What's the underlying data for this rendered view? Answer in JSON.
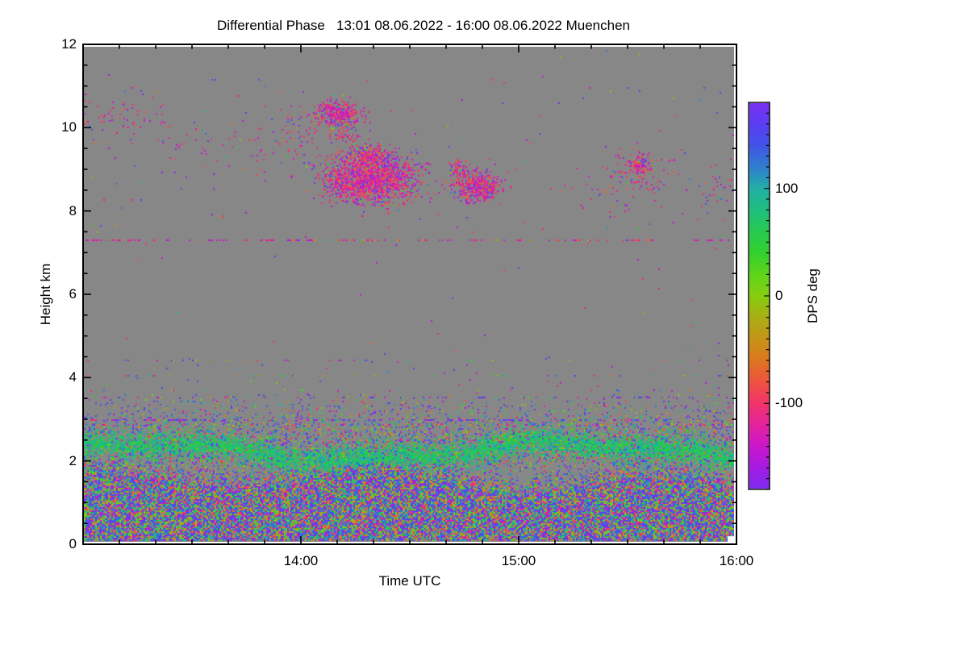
{
  "title": "Differential Phase   13:01 08.06.2022 - 16:00 08.06.2022 Muenchen",
  "figure": {
    "background": "#ffffff",
    "plot_background_nodata": "#878787",
    "axis_color": "#000000"
  },
  "axes": {
    "x": {
      "label": "Time UTC",
      "ticks": [
        "14:00",
        "15:00",
        "16:00"
      ],
      "tick_hours": [
        14,
        15,
        16
      ],
      "range_hours": [
        13,
        16
      ],
      "minor_step_minutes": 10
    },
    "y": {
      "label": "Height km",
      "ticks": [
        "0",
        "2",
        "4",
        "6",
        "8",
        "10",
        "12"
      ],
      "tick_values": [
        0,
        2,
        4,
        6,
        8,
        10,
        12
      ],
      "range_km": [
        0,
        12
      ],
      "minor_step_km": 0.5
    }
  },
  "colorbar": {
    "label": "DPS deg",
    "ticks": [
      "100",
      "0",
      "-100"
    ],
    "tick_values": [
      100,
      0,
      -100
    ],
    "range": [
      -180,
      180
    ],
    "minor_step": 10
  },
  "chart_data": {
    "type": "heatmap",
    "title": "Differential Phase   13:01 08.06.2022 - 16:00 08.06.2022 Muenchen",
    "xlabel": "Time UTC",
    "ylabel": "Height km",
    "value_label": "DPS deg",
    "x_range_hours": [
      13,
      16
    ],
    "y_range_km": [
      0,
      12
    ],
    "value_range_deg": [
      -180,
      180
    ],
    "seed": 77,
    "colormap": [
      [
        180,
        "#7A30F0"
      ],
      [
        160,
        "#5A3DF2"
      ],
      [
        140,
        "#3F55E6"
      ],
      [
        120,
        "#2F7FCE"
      ],
      [
        100,
        "#22AFA6"
      ],
      [
        80,
        "#1FBE7E"
      ],
      [
        60,
        "#27C94F"
      ],
      [
        40,
        "#33D02E"
      ],
      [
        20,
        "#5FD51A"
      ],
      [
        0,
        "#86CE10"
      ],
      [
        -20,
        "#A9AE14"
      ],
      [
        -40,
        "#C59517"
      ],
      [
        -60,
        "#DD761F"
      ],
      [
        -80,
        "#EE5340"
      ],
      [
        -100,
        "#F23469"
      ],
      [
        -120,
        "#E4239C"
      ],
      [
        -140,
        "#CB17CB"
      ],
      [
        -160,
        "#A51BE2"
      ],
      [
        -180,
        "#7F2BEE"
      ]
    ],
    "features": {
      "ground_noise": {
        "dense_top_km": 1.45,
        "wave_amp_km": 0.25,
        "density": 0.93,
        "falloff_sigma": 0.12,
        "blue_bias": 0.22
      },
      "green_aerosol_band": {
        "center_km": 2.2,
        "wave_amp_km": 0.2,
        "sigma_km": 0.19,
        "density": 0.9,
        "value_range_deg": [
          40,
          120
        ]
      },
      "mixed_speckle": {
        "center_km": 2.35,
        "sigma_km": 0.55,
        "density": 0.32
      },
      "dash_lines": [
        {
          "h_km": 7.33,
          "density": 0.3,
          "palette": "pink-magenta"
        },
        {
          "h_km": 4.42,
          "density": 0.08,
          "palette": "mixed"
        },
        {
          "h_km": 4.05,
          "density": 0.1,
          "palette": "mixed"
        },
        {
          "h_km": 3.7,
          "density": 0.05,
          "palette": "mixed"
        },
        {
          "h_km": 3.52,
          "density": 0.18,
          "palette": "cool"
        },
        {
          "h_km": 3.3,
          "density": 0.06,
          "palette": "mixed"
        },
        {
          "h_km": 2.98,
          "density": 0.3,
          "palette": "cool"
        },
        {
          "h_km": 2.86,
          "density": 0.25,
          "palette": "mixed"
        }
      ],
      "sparse_bands": [
        {
          "h0_km": 3.2,
          "h1_km": 4.6,
          "density": 0.006
        },
        {
          "h0_km": 4.6,
          "h1_km": 7.1,
          "density": 0.0007
        },
        {
          "h0_km": 7.1,
          "h1_km": 7.6,
          "density": 0.0015
        },
        {
          "h0_km": 7.6,
          "h1_km": 11.3,
          "density": 0.004
        },
        {
          "h0_km": 11.3,
          "h1_km": 12.0,
          "density": 0.0009
        }
      ],
      "cloud_clusters": [
        {
          "t_h": 14.17,
          "h_km": 10.38,
          "sig_t": 0.05,
          "sig_h": 0.17,
          "n": 380
        },
        {
          "t_h": 14.2,
          "h_km": 9.85,
          "sig_t": 0.03,
          "sig_h": 0.12,
          "n": 50
        },
        {
          "t_h": 14.3,
          "h_km": 9.35,
          "sig_t": 0.06,
          "sig_h": 0.15,
          "n": 250
        },
        {
          "t_h": 14.34,
          "h_km": 8.8,
          "sig_t": 0.095,
          "sig_h": 0.3,
          "n": 1500
        },
        {
          "t_h": 14.19,
          "h_km": 8.75,
          "sig_t": 0.05,
          "sig_h": 0.22,
          "n": 250
        },
        {
          "t_h": 14.81,
          "h_km": 8.62,
          "sig_t": 0.055,
          "sig_h": 0.18,
          "n": 500
        },
        {
          "t_h": 14.73,
          "h_km": 9.05,
          "sig_t": 0.025,
          "sig_h": 0.12,
          "n": 70
        },
        {
          "t_h": 15.56,
          "h_km": 9.15,
          "sig_t": 0.02,
          "sig_h": 0.13,
          "n": 90
        },
        {
          "t_h": 15.55,
          "h_km": 9.0,
          "sig_t": 0.07,
          "sig_h": 0.3,
          "n": 90
        },
        {
          "t_h": 13.15,
          "h_km": 10.25,
          "sig_t": 0.12,
          "sig_h": 0.25,
          "n": 60
        },
        {
          "t_h": 13.45,
          "h_km": 9.85,
          "sig_t": 0.12,
          "sig_h": 0.3,
          "n": 35
        },
        {
          "t_h": 13.75,
          "h_km": 9.45,
          "sig_t": 0.1,
          "sig_h": 0.3,
          "n": 30
        },
        {
          "t_h": 14.0,
          "h_km": 9.9,
          "sig_t": 0.07,
          "sig_h": 0.45,
          "n": 70
        },
        {
          "t_h": 15.45,
          "h_km": 8.55,
          "sig_t": 0.12,
          "sig_h": 0.35,
          "n": 45
        },
        {
          "t_h": 15.93,
          "h_km": 8.6,
          "sig_t": 0.06,
          "sig_h": 0.3,
          "n": 40
        }
      ]
    }
  }
}
